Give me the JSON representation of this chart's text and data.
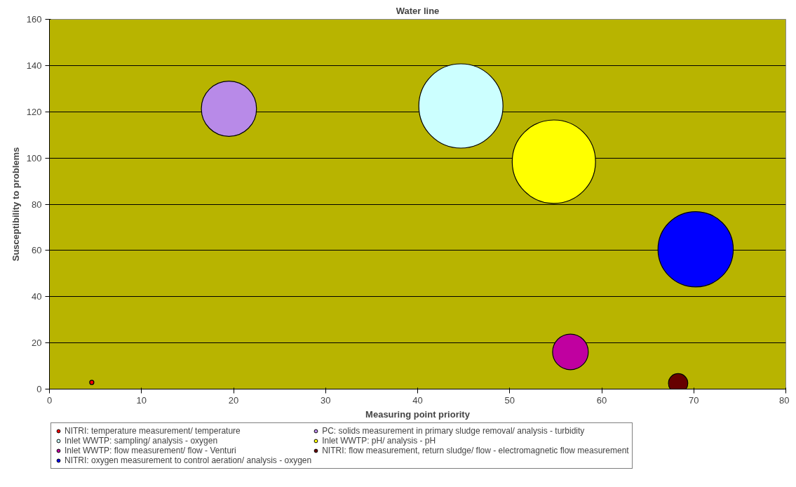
{
  "chart_data": {
    "type": "bubble",
    "title": "Water line",
    "xlabel": "Measuring point priority",
    "ylabel": "Susceptibility to problems",
    "xlim": [
      0,
      80
    ],
    "xticks": [
      0,
      10,
      20,
      30,
      40,
      50,
      60,
      70,
      80
    ],
    "ylim": [
      0,
      160
    ],
    "yticks": [
      0,
      20,
      40,
      60,
      80,
      100,
      120,
      140,
      160
    ],
    "grid": "y",
    "legend": "bottom",
    "series": [
      {
        "name": "NITRI: temperature measurement/ temperature",
        "color": "#ff0000",
        "x": [
          4.6
        ],
        "values": [
          2.9
        ],
        "sizes": [
          0.0025
        ]
      },
      {
        "name": "PC: solids measurement in primary sludge removal/ analysis - turbidity",
        "color": "#b88ae8",
        "x": [
          19.5
        ],
        "values": [
          121.3
        ],
        "sizes": [
          0.43
        ]
      },
      {
        "name": "Inlet WWTP: sampling/ analysis - oxygen",
        "color": "#ccffff",
        "x": [
          44.7
        ],
        "values": [
          122.5
        ],
        "sizes": [
          1
        ]
      },
      {
        "name": "Inlet WWTP: pH/ analysis - pH",
        "color": "#ffff00",
        "x": [
          54.8
        ],
        "values": [
          98.4
        ],
        "sizes": [
          0.98
        ]
      },
      {
        "name": "Inlet WWTP: flow measurement/ flow - Venturi",
        "color": "#c000a0",
        "x": [
          56.6
        ],
        "values": [
          16.1
        ],
        "sizes": [
          0.18
        ]
      },
      {
        "name": "NITRI: flow measurement, return sludge/ flow - electromagnetic flow measurement",
        "color": "#660000",
        "x": [
          68.3
        ],
        "values": [
          2.5
        ],
        "sizes": [
          0.053
        ]
      },
      {
        "name": "NITRI: oxygen measurement to control aeration/ analysis - oxygen",
        "color": "#0000ff",
        "x": [
          70.2
        ],
        "values": [
          60.5
        ],
        "sizes": [
          0.8
        ]
      }
    ]
  }
}
